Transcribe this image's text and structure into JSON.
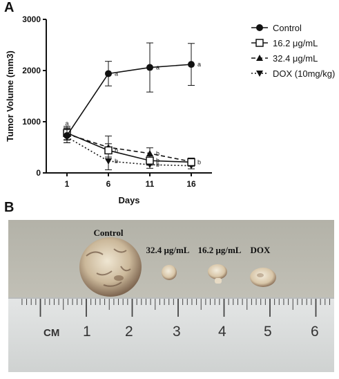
{
  "panel_a": {
    "letter": "A"
  },
  "panel_b": {
    "letter": "B",
    "labels": [
      "Control",
      "32.4 μg/mL",
      "16.2 μg/mL",
      "DOX"
    ],
    "ruler": {
      "unit": "CM",
      "numbers": [
        "1",
        "2",
        "3",
        "4",
        "5",
        "6"
      ]
    }
  },
  "chart_data": {
    "type": "line",
    "x": [
      1,
      6,
      11,
      16
    ],
    "xlabel": "Days",
    "ylabel": "Tumor Volume (mm3)",
    "ylim": [
      0,
      3000
    ],
    "yticks": [
      0,
      1000,
      2000,
      3000
    ],
    "xticks": [
      1,
      6,
      11,
      16
    ],
    "legend_position": "top-right",
    "series": [
      {
        "name": "Control",
        "marker": "filled-circle",
        "line": "solid",
        "values": [
          730,
          1940,
          2060,
          2120
        ],
        "errors": [
          140,
          240,
          480,
          410
        ],
        "labels": [
          "a",
          "a",
          "a",
          "a"
        ]
      },
      {
        "name": "16.2 μg/mL",
        "marker": "open-square",
        "line": "solid",
        "values": [
          780,
          440,
          240,
          210
        ],
        "errors": [
          130,
          130,
          90,
          80
        ],
        "labels": [
          "",
          "b",
          "b",
          "b"
        ]
      },
      {
        "name": "32.4 μg/mL",
        "marker": "filled-triangle-up",
        "line": "dashed",
        "values": [
          760,
          500,
          380,
          220
        ],
        "errors": [
          120,
          220,
          110,
          70
        ],
        "labels": [
          "",
          "",
          "b",
          ""
        ]
      },
      {
        "name": "DOX (10mg/kg)",
        "marker": "filled-triangle-down",
        "line": "dotted",
        "values": [
          700,
          230,
          160,
          140
        ],
        "errors": [
          110,
          170,
          70,
          60
        ],
        "labels": [
          "",
          "b",
          "b",
          ""
        ]
      }
    ]
  }
}
